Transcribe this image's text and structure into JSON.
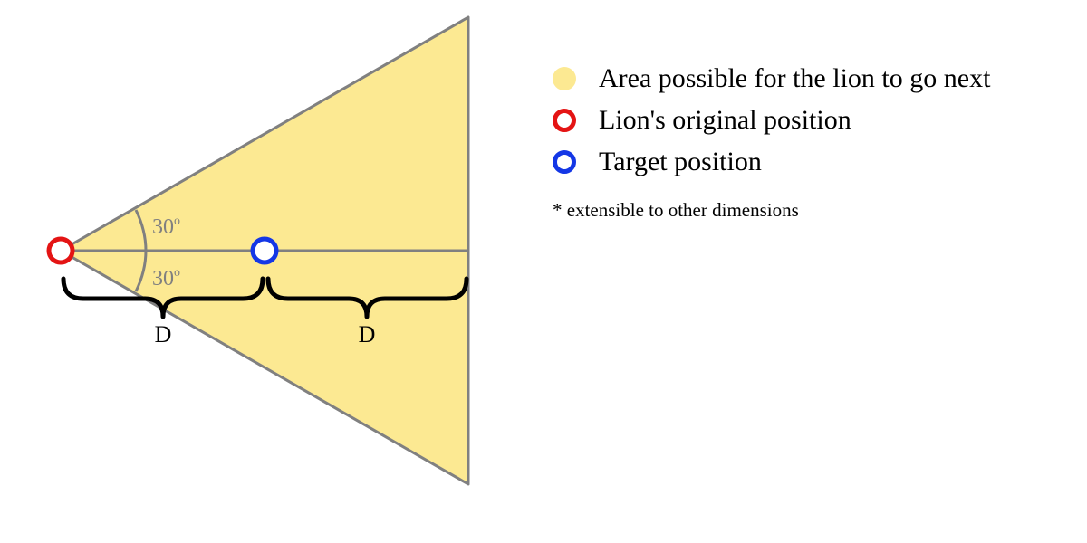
{
  "colors": {
    "area_fill": "#fce992",
    "outline": "#808080",
    "origin": "#e41414",
    "target": "#1437e6",
    "brace": "#000000"
  },
  "angles": {
    "upper": {
      "value": "30",
      "unit": "o"
    },
    "lower": {
      "value": "30",
      "unit": "o"
    }
  },
  "distances": {
    "left": "D",
    "right": "D"
  },
  "legend": {
    "items": [
      {
        "label": "Area possible for the lion to go next",
        "marker": "filled-circle",
        "color": "#fce992"
      },
      {
        "label": "Lion's original position",
        "marker": "ring",
        "color": "#e41414"
      },
      {
        "label": "Target position",
        "marker": "ring",
        "color": "#1437e6"
      }
    ],
    "note": "* extensible to other dimensions"
  }
}
